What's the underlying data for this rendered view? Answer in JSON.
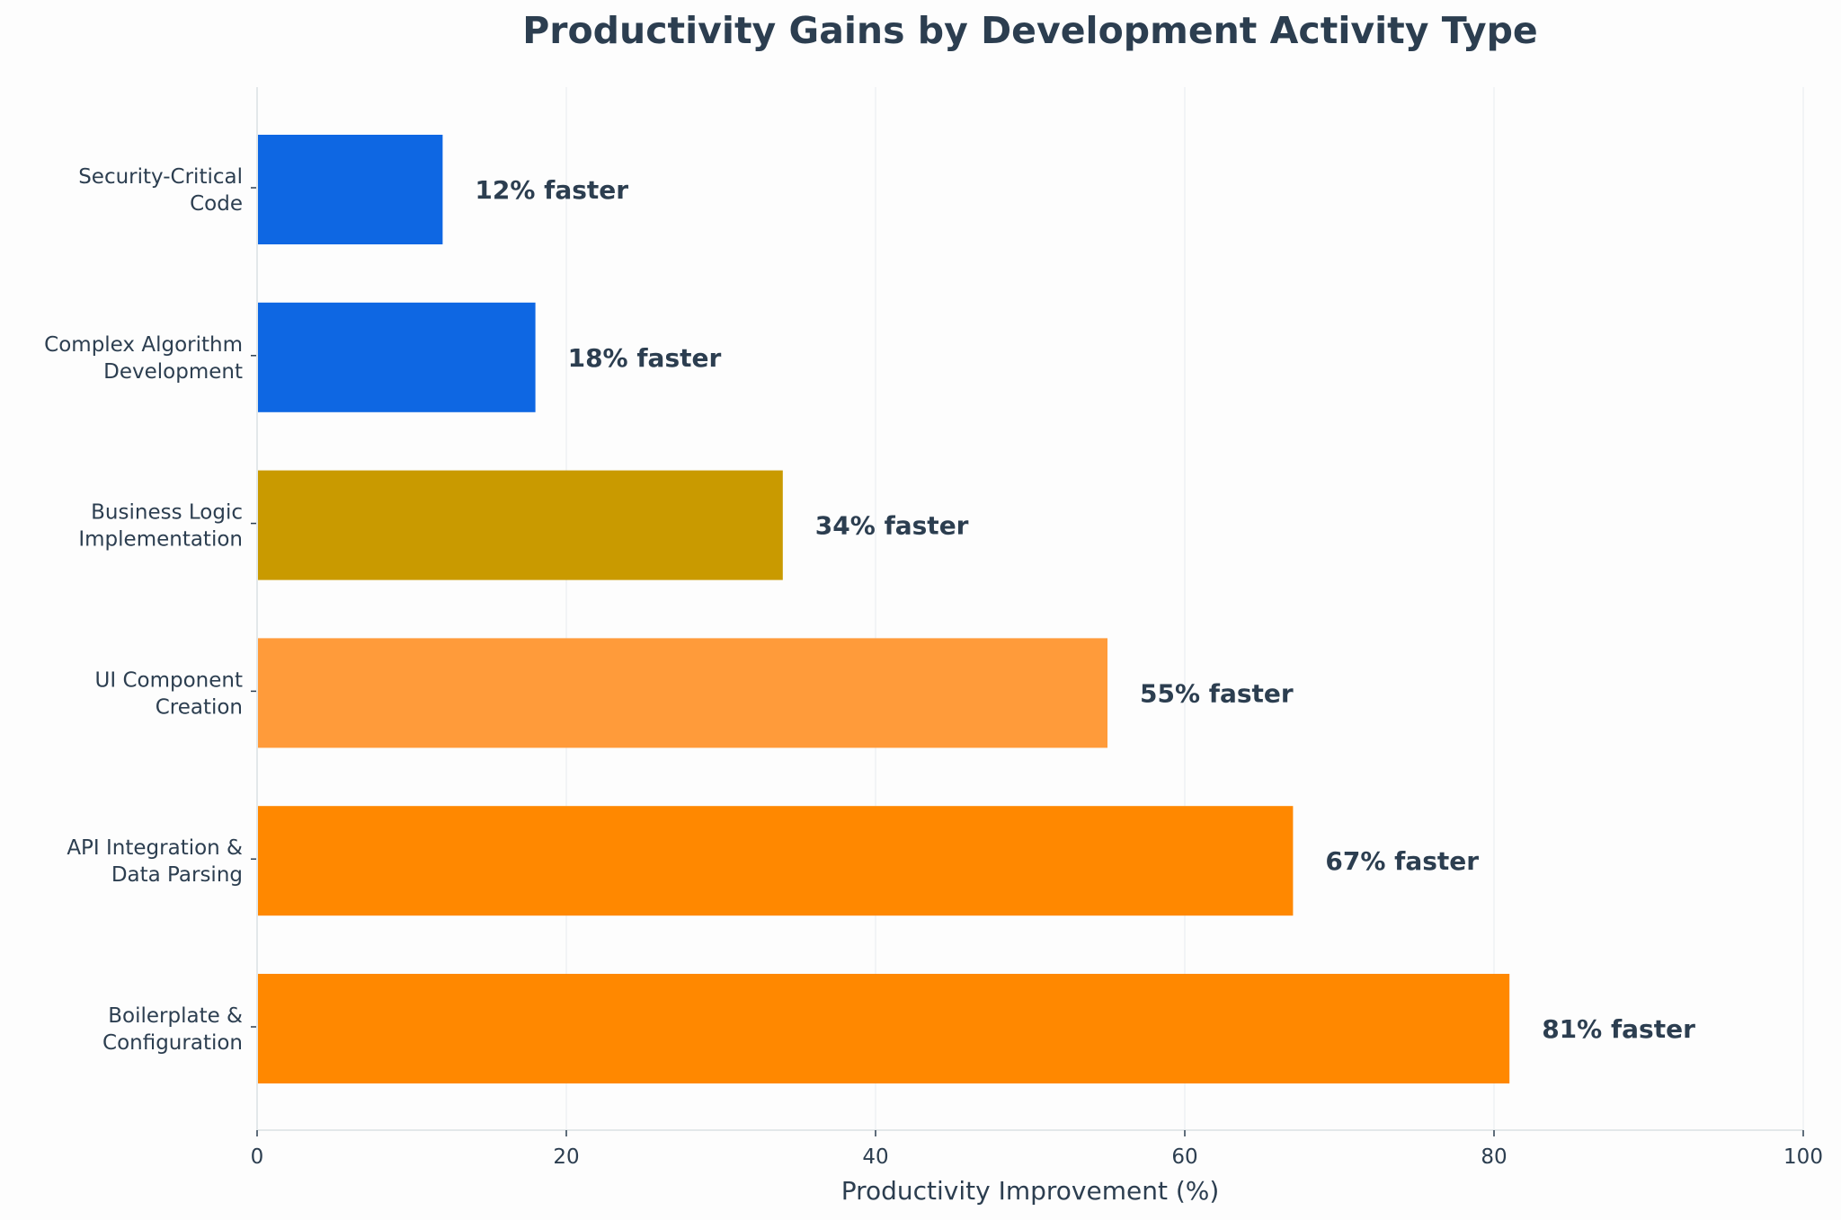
{
  "chart_data": {
    "type": "bar",
    "orientation": "horizontal",
    "title": "Productivity Gains by Development Activity Type",
    "xlabel": "Productivity Improvement (%)",
    "ylabel": "",
    "xlim": [
      0,
      100
    ],
    "xticks": [
      0,
      20,
      40,
      60,
      80,
      100
    ],
    "grid": "x",
    "legend": "none",
    "categories": [
      [
        "Security-Critical",
        "Code"
      ],
      [
        "Complex Algorithm",
        "Development"
      ],
      [
        "Business Logic",
        "Implementation"
      ],
      [
        "UI Component",
        "Creation"
      ],
      [
        "API Integration &",
        "Data Parsing"
      ],
      [
        "Boilerplate &",
        "Configuration"
      ]
    ],
    "values": [
      12,
      18,
      34,
      55,
      67,
      81
    ],
    "data_labels": [
      "12% faster",
      "18% faster",
      "34% faster",
      "55% faster",
      "67% faster",
      "81% faster"
    ],
    "colors": [
      "#0e67e3",
      "#0e67e3",
      "#c99a00",
      "#ff9b3a",
      "#ff8800",
      "#ff8800"
    ]
  },
  "style": {
    "text_color": "#2c3e50",
    "grid_color": "#eceff1",
    "spine_color": "#e3e8ea",
    "background": "#fdfdfd"
  }
}
